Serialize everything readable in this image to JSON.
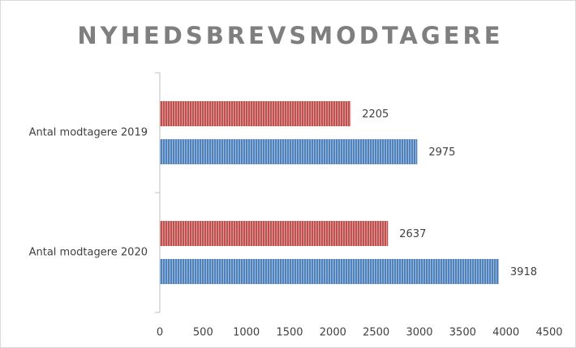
{
  "chart_data": {
    "type": "barh",
    "title": "NYHEDSBREVSMODTAGERE",
    "categories": [
      "Antal modtagere 2019",
      "Antal modtagere 2020"
    ],
    "series": [
      {
        "color": "#c0504d",
        "values": [
          2205,
          2637
        ]
      },
      {
        "color": "#4f81bd",
        "values": [
          2975,
          3918
        ]
      }
    ],
    "xlim": [
      0,
      4500
    ],
    "xticks": [
      0,
      500,
      1000,
      1500,
      2000,
      2500,
      3000,
      3500,
      4000,
      4500
    ],
    "grid": false
  }
}
